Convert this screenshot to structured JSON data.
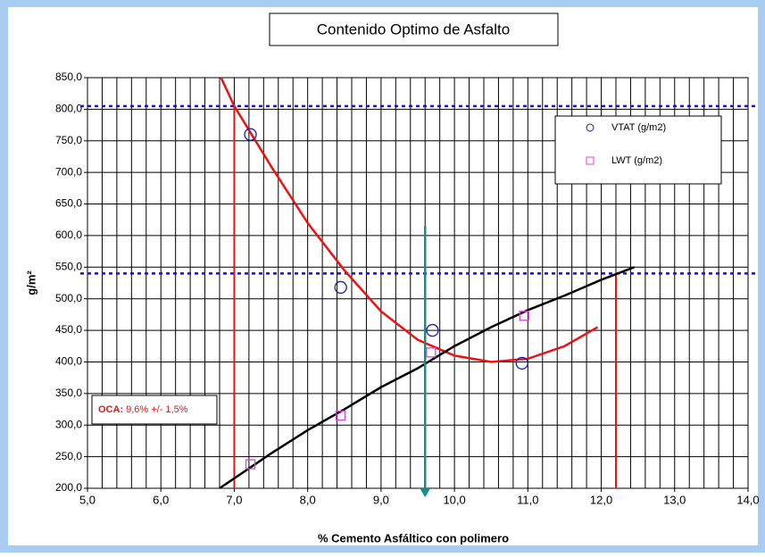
{
  "chart_data": {
    "type": "scatter",
    "title": "Contenido Optimo de Asfalto",
    "x_label": "% Cemento Asfáltico con polimero",
    "y_label": "g/m²",
    "xlim": [
      5.0,
      14.0
    ],
    "ylim": [
      200,
      850
    ],
    "xticks": [
      {
        "value": 5,
        "label": "5,0"
      },
      {
        "value": 6,
        "label": "6,0"
      },
      {
        "value": 7,
        "label": "7,0"
      },
      {
        "value": 8,
        "label": "8,0"
      },
      {
        "value": 9,
        "label": "9,0"
      },
      {
        "value": 10,
        "label": "10,0"
      },
      {
        "value": 11,
        "label": "11,0"
      },
      {
        "value": 12,
        "label": "12,0"
      },
      {
        "value": 13,
        "label": "13,0"
      },
      {
        "value": 14,
        "label": "14,0"
      }
    ],
    "yticks": [
      {
        "value": 200,
        "label": "200,0"
      },
      {
        "value": 250,
        "label": "250,0"
      },
      {
        "value": 300,
        "label": "300,0"
      },
      {
        "value": 350,
        "label": "350,0"
      },
      {
        "value": 400,
        "label": "400,0"
      },
      {
        "value": 450,
        "label": "450,0"
      },
      {
        "value": 500,
        "label": "500,0"
      },
      {
        "value": 550,
        "label": "550,0"
      },
      {
        "value": 600,
        "label": "600,0"
      },
      {
        "value": 650,
        "label": "650,0"
      },
      {
        "value": 700,
        "label": "700,0"
      },
      {
        "value": 750,
        "label": "750,0"
      },
      {
        "value": 800,
        "label": "800,0"
      },
      {
        "value": 850,
        "label": "850,0"
      }
    ],
    "xgrid": [
      5.0,
      5.2,
      5.4,
      5.6,
      5.8,
      6.0,
      6.2,
      6.4,
      6.6,
      6.8,
      7.0,
      7.2,
      7.4,
      7.6,
      7.8,
      8.0,
      8.2,
      8.4,
      8.6,
      8.8,
      9.0,
      9.2,
      9.4,
      9.6,
      9.8,
      10.0,
      10.2,
      10.4,
      10.6,
      10.8,
      11.0,
      11.2,
      11.4,
      11.6,
      11.8,
      12.0,
      12.2,
      12.4,
      12.6,
      12.8,
      13.0,
      13.2,
      13.4,
      13.6,
      13.8,
      14.0
    ],
    "grid": true,
    "series": [
      {
        "name": "VTAT (g/m2)",
        "color": "#1c1ca6",
        "marker": "circle",
        "x": [
          7.22,
          8.45,
          9.7,
          10.92
        ],
        "values": [
          760,
          518,
          450,
          398
        ]
      },
      {
        "name": "LWT (g/m2)",
        "color": "#e040e0",
        "marker": "square",
        "x": [
          7.22,
          8.45,
          9.68,
          10.95
        ],
        "values": [
          238,
          315,
          415,
          473
        ]
      }
    ],
    "fits": [
      {
        "color": "#ee1111",
        "x": [
          6.82,
          7.0,
          7.5,
          8.0,
          8.5,
          9.0,
          9.5,
          10.0,
          10.5,
          11.0,
          11.5,
          11.95
        ],
        "values": [
          850,
          805,
          710,
          620,
          545,
          480,
          435,
          410,
          400,
          405,
          425,
          455
        ]
      },
      {
        "color": "#000000",
        "x": [
          6.8,
          7.5,
          8.0,
          8.5,
          9.0,
          9.5,
          10.0,
          10.5,
          11.0,
          11.5,
          12.0,
          12.45
        ],
        "values": [
          200,
          255,
          292,
          325,
          360,
          390,
          425,
          455,
          482,
          505,
          530,
          550
        ]
      }
    ],
    "hlines": [
      805,
      540
    ],
    "vlines": [
      {
        "x": 7.0,
        "values": [
          200,
          805
        ]
      },
      {
        "x": 12.2,
        "values": [
          200,
          540
        ]
      }
    ],
    "arrow": {
      "x": 9.6,
      "values": [
        615,
        200
      ]
    },
    "annotation": {
      "bold": "OCA:",
      "text": "9,6% +/- 1,5%"
    }
  }
}
